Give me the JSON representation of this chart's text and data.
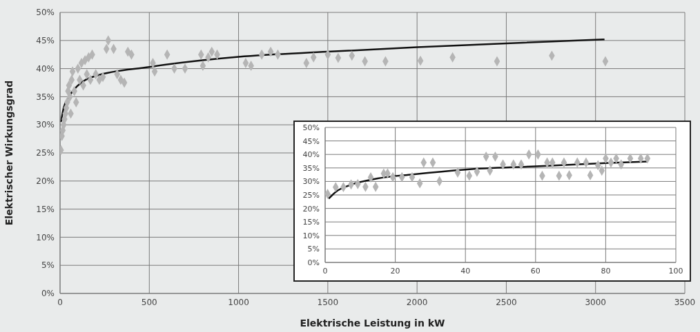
{
  "chart_data": [
    {
      "type": "scatter",
      "xlabel": "Elektrische Leistung in kW",
      "ylabel": "Elektrischer Wirkungsgrad",
      "xlim": [
        0,
        3500
      ],
      "xticks": [
        0,
        500,
        1000,
        1500,
        2000,
        2500,
        3000,
        3500
      ],
      "ylim": [
        0,
        50
      ],
      "yticks": [
        {
          "value": 0,
          "label": "0%"
        },
        {
          "value": 5,
          "label": "5%"
        },
        {
          "value": 10,
          "label": "10%"
        },
        {
          "value": 15,
          "label": "15%"
        },
        {
          "value": 20,
          "label": "20%"
        },
        {
          "value": 25,
          "label": "25%"
        },
        {
          "value": 30,
          "label": "30%"
        },
        {
          "value": 35,
          "label": "35%"
        },
        {
          "value": 40,
          "label": "40%"
        },
        {
          "value": 45,
          "label": "45%"
        },
        {
          "value": 50,
          "label": "50%"
        }
      ],
      "grid": true,
      "series": [
        {
          "marker": "diamond",
          "color": "#b5b5b5",
          "x": [
            5,
            10,
            15,
            20,
            25,
            30,
            35,
            40,
            45,
            50,
            55,
            60,
            65,
            70,
            80,
            90,
            100,
            110,
            120,
            130,
            140,
            150,
            160,
            170,
            180,
            200,
            220,
            240,
            260,
            270,
            300,
            320,
            340,
            360,
            380,
            400,
            520,
            530,
            600,
            640,
            700,
            790,
            800,
            830,
            850,
            880,
            1040,
            1070,
            1130,
            1180,
            1220,
            1380,
            1420,
            1500,
            1558,
            1635,
            1708,
            1823,
            2019,
            2199,
            2448,
            2755,
            3055
          ],
          "values": [
            25.5,
            28,
            29,
            30,
            31,
            32,
            33,
            34,
            36,
            37,
            35,
            32,
            38,
            39.5,
            36,
            34,
            40,
            38,
            41,
            37,
            41.5,
            39,
            42,
            38,
            42.5,
            39,
            38,
            38.5,
            43.5,
            45,
            43.5,
            39,
            38,
            37.5,
            43,
            42.5,
            41,
            39.5,
            42.5,
            40,
            40,
            42.5,
            40.5,
            42,
            43,
            42.5,
            41,
            40.5,
            42.5,
            43,
            42.5,
            41,
            42,
            42.5,
            41.9,
            42.3,
            41.3,
            41.3,
            41.4,
            42,
            41.3,
            42.3,
            41.3
          ]
        },
        {
          "type": "line",
          "marker": "none",
          "color": "#111111",
          "x": [
            5,
            20,
            50,
            100,
            200,
            500,
            1000,
            1500,
            2000,
            2500,
            3050
          ],
          "values": [
            30.5,
            33,
            35,
            37,
            38.7,
            40.3,
            42.1,
            43,
            43.8,
            44.5,
            45.2
          ]
        }
      ]
    },
    {
      "type": "scatter",
      "xlim": [
        0,
        100
      ],
      "xticks": [
        0,
        20,
        40,
        60,
        80,
        100
      ],
      "ylim": [
        0,
        50
      ],
      "yticks": [
        {
          "value": 0,
          "label": "0%"
        },
        {
          "value": 5,
          "label": "5%"
        },
        {
          "value": 10,
          "label": "10%"
        },
        {
          "value": 15,
          "label": "15%"
        },
        {
          "value": 20,
          "label": "20%"
        },
        {
          "value": 25,
          "label": "25%"
        },
        {
          "value": 30,
          "label": "30%"
        },
        {
          "value": 35,
          "label": "35%"
        },
        {
          "value": 40,
          "label": "40%"
        },
        {
          "value": 45,
          "label": "45%"
        },
        {
          "value": 50,
          "label": "50%"
        }
      ],
      "grid": true,
      "series": [
        {
          "marker": "diamond",
          "color": "#b5b5b5",
          "x": [
            0.7,
            3,
            5.2,
            7.4,
            9.3,
            11.5,
            13,
            14.4,
            16.7,
            17.8,
            19.3,
            21.9,
            24.8,
            27,
            28.1,
            30.7,
            32.6,
            37.8,
            41.1,
            43.3,
            45.9,
            48.5,
            47,
            50.7,
            53.7,
            55.9,
            58.1,
            60.7,
            61.9,
            63.3,
            64.8,
            66.7,
            68.1,
            69.6,
            71.9,
            74.4,
            75.6,
            77.8,
            78.9,
            80,
            81.5,
            83,
            84.4,
            87,
            90,
            91.9
          ],
          "values": [
            25.4,
            27.9,
            27.9,
            28.9,
            29,
            28,
            31.5,
            28,
            32.9,
            33,
            31.6,
            31.6,
            31.6,
            29.3,
            37,
            37,
            30.1,
            33.3,
            32.1,
            33.6,
            39.2,
            39.2,
            34,
            36.3,
            36.3,
            36.3,
            40,
            40,
            32.1,
            37,
            37,
            32.1,
            37,
            32.3,
            37,
            37,
            32.3,
            36,
            34,
            38.5,
            37,
            38.5,
            36.3,
            38.5,
            38.5,
            38.5
          ]
        },
        {
          "type": "line",
          "marker": "none",
          "color": "#111111",
          "x": [
            1,
            3,
            7,
            15,
            25,
            40,
            60,
            80,
            92
          ],
          "values": [
            23.6,
            26.1,
            28.6,
            31.1,
            32.6,
            34.4,
            35.6,
            36.8,
            37.4
          ]
        }
      ]
    }
  ]
}
